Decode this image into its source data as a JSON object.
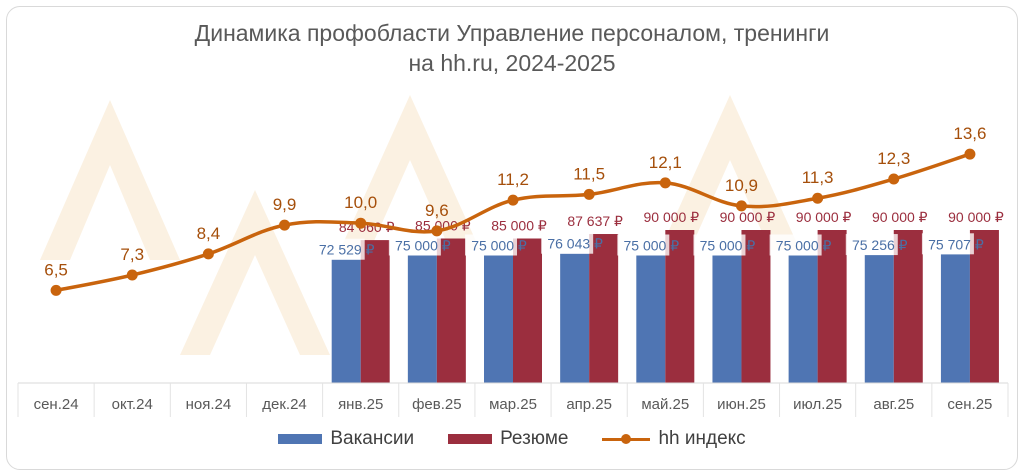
{
  "chart_data": {
    "type": "bar",
    "title_line1": "Динамика профобласти Управление персоналом, тренинги",
    "title_line2": "на hh.ru, 2024-2025",
    "categories": [
      "сен.24",
      "окт.24",
      "ноя.24",
      "дек.24",
      "янв.25",
      "фев.25",
      "мар.25",
      "апр.25",
      "май.25",
      "июн.25",
      "июл.25",
      "авг.25",
      "сен.25"
    ],
    "series": [
      {
        "name": "Вакансии",
        "kind": "bar",
        "color": "#4f75b3",
        "values": [
          null,
          null,
          null,
          null,
          72529,
          75000,
          75000,
          76043,
          75000,
          75000,
          75000,
          75256,
          75707
        ],
        "labels": [
          "",
          "",
          "",
          "",
          "72 529 ₽",
          "75 000 ₽",
          "75 000 ₽",
          "76 043 ₽",
          "75 000 ₽",
          "75 000 ₽",
          "75 000 ₽",
          "75 256 ₽",
          "75 707 ₽"
        ]
      },
      {
        "name": "Резюме",
        "kind": "bar",
        "color": "#9b2e3e",
        "values": [
          null,
          null,
          null,
          null,
          84060,
          85000,
          85000,
          87637,
          90000,
          90000,
          90000,
          90000,
          90000
        ],
        "labels": [
          "",
          "",
          "",
          "",
          "84 060 ₽",
          "85 000 ₽",
          "85 000 ₽",
          "87 637 ₽",
          "90 000 ₽",
          "90 000 ₽",
          "90 000 ₽",
          "90 000 ₽",
          "90 000 ₽"
        ]
      },
      {
        "name": "hh индекс",
        "kind": "line",
        "color": "#c9640d",
        "values": [
          6.5,
          7.3,
          8.4,
          9.9,
          10.0,
          9.6,
          11.2,
          11.5,
          12.1,
          10.9,
          11.3,
          12.3,
          13.6
        ],
        "labels": [
          "6,5",
          "7,3",
          "8,4",
          "9,9",
          "10,0",
          "9,6",
          "11,2",
          "11,5",
          "12,1",
          "10,9",
          "11,3",
          "12,3",
          "13,6"
        ]
      }
    ],
    "salary_axis_range": [
      0,
      90000
    ],
    "index_axis_range": [
      0,
      15
    ],
    "grid": false,
    "legend_position": "bottom"
  },
  "colors": {
    "title": "#595959",
    "axis_text": "#595959",
    "vacancy_label": "#4a6fa5",
    "resume_label": "#9b2e3e",
    "index_label": "#a54f0b"
  }
}
